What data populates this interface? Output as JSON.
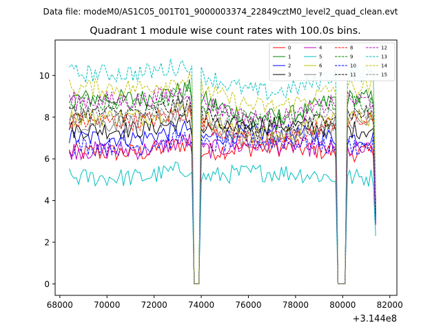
{
  "chart_data": {
    "type": "line",
    "suptitle": "Data file: modeM0/AS1C05_001T01_9000003374_22849cztM0_level2_quad_clean.evt",
    "title": "Quadrant 1 module wise count rates with 100.0s bins.",
    "xlabel": "",
    "ylabel": "",
    "x_offset_label": "+3.144e8",
    "xlim": [
      67800,
      82300
    ],
    "ylim": [
      -0.55,
      11.7
    ],
    "x_ticks": [
      68000,
      70000,
      72000,
      74000,
      76000,
      78000,
      80000,
      82000
    ],
    "x_tick_labels": [
      "68000",
      "70000",
      "72000",
      "74000",
      "76000",
      "78000",
      "80000",
      "82000"
    ],
    "y_ticks": [
      0,
      2,
      4,
      6,
      8,
      10
    ],
    "y_tick_labels": [
      "0",
      "2",
      "4",
      "6",
      "8",
      "10"
    ],
    "x_start": 68400,
    "x_end": 81400,
    "bin_width": 100,
    "gaps": [
      [
        73650,
        73950
      ],
      [
        79750,
        80150
      ]
    ],
    "legend": {
      "placement": "top-right",
      "columns": 4
    },
    "series": [
      {
        "name": "0",
        "color": "#ff0000",
        "dash": "solid",
        "base": 6.3,
        "dip": 0
      },
      {
        "name": "1",
        "color": "#008000",
        "dash": "solid",
        "base": 8.9,
        "dip": 1
      },
      {
        "name": "2",
        "color": "#0000ff",
        "dash": "solid",
        "base": 7.0,
        "dip": 0
      },
      {
        "name": "3",
        "color": "#000000",
        "dash": "solid",
        "base": 7.4,
        "dip": 0
      },
      {
        "name": "4",
        "color": "#bf00bf",
        "dash": "solid",
        "base": 6.4,
        "dip": 0
      },
      {
        "name": "5",
        "color": "#00bfbf",
        "dash": "solid",
        "base": 5.1,
        "dip": 0
      },
      {
        "name": "6",
        "color": "#bfbf00",
        "dash": "solid",
        "base": 8.0,
        "dip": 1
      },
      {
        "name": "7",
        "color": "#808080",
        "dash": "solid",
        "base": 7.7,
        "dip": 1
      },
      {
        "name": "8",
        "color": "#ff0000",
        "dash": "dashed",
        "base": 7.8,
        "dip": 1
      },
      {
        "name": "9",
        "color": "#008000",
        "dash": "dashed",
        "base": 8.7,
        "dip": 1
      },
      {
        "name": "10",
        "color": "#0000ff",
        "dash": "dashed",
        "base": 6.6,
        "dip": 0
      },
      {
        "name": "11",
        "color": "#000000",
        "dash": "dashed",
        "base": 8.2,
        "dip": 1
      },
      {
        "name": "12",
        "color": "#bf00bf",
        "dash": "dashed",
        "base": 8.8,
        "dip": 1
      },
      {
        "name": "13",
        "color": "#00bfbf",
        "dash": "dashed",
        "base": 10.1,
        "dip": 1
      },
      {
        "name": "14",
        "color": "#bfbf00",
        "dash": "dashed",
        "base": 9.4,
        "dip": 1
      },
      {
        "name": "15",
        "color": "#808080",
        "dash": "dashed",
        "base": 8.1,
        "dip": 1
      }
    ]
  }
}
